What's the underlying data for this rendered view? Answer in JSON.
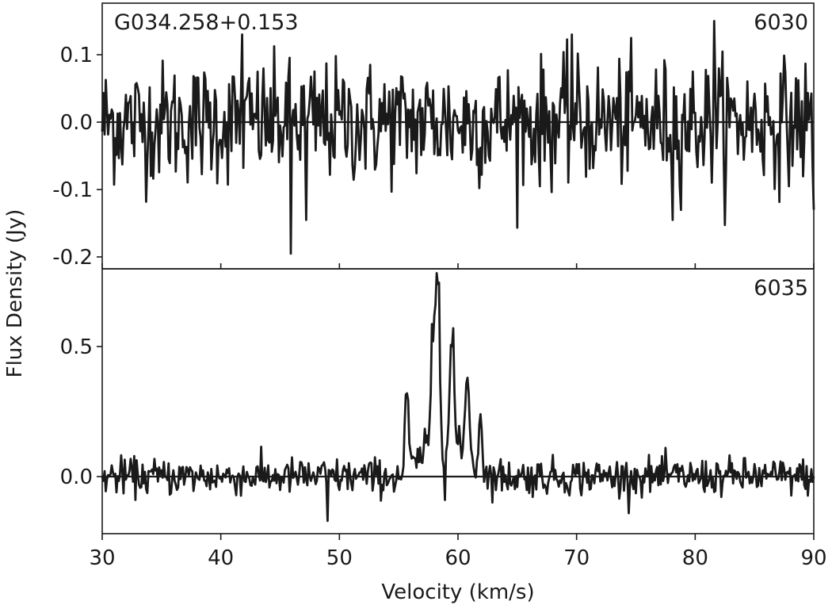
{
  "chart_data": {
    "type": "line",
    "xlabel": "Velocity (km/s)",
    "ylabel": "Flux Density (Jy)",
    "xlim": [
      30,
      90
    ],
    "x_ticks": [
      30,
      40,
      50,
      60,
      70,
      80,
      90
    ],
    "x_tick_labels": [
      "30",
      "40",
      "50",
      "60",
      "70",
      "80",
      "90"
    ],
    "source_label": "G034.258+0.153",
    "grid": false,
    "panels": [
      {
        "label": "6030",
        "ylim": [
          -0.22,
          0.18
        ],
        "y_ticks": [
          0.1,
          0.0,
          -0.1,
          -0.2
        ],
        "y_tick_labels": [
          "0.1",
          "0.0",
          "-0.1",
          "-0.2"
        ],
        "zero_line": 0.0,
        "noise_rms": 0.045,
        "features": [
          {
            "x": 41.8,
            "y": 0.13
          },
          {
            "x": 45.9,
            "y": -0.195
          },
          {
            "x": 47.2,
            "y": -0.145
          },
          {
            "x": 69.6,
            "y": 0.13
          },
          {
            "x": 78.1,
            "y": -0.145
          },
          {
            "x": 81.6,
            "y": 0.15
          },
          {
            "x": 90.0,
            "y": -0.13
          }
        ]
      },
      {
        "label": "6035",
        "ylim": [
          -0.22,
          0.75
        ],
        "y_ticks": [
          0.5,
          0.0
        ],
        "y_tick_labels": [
          "0.5",
          "0.0"
        ],
        "zero_line": 0.0,
        "noise_rms": 0.035,
        "emission_peaks": [
          {
            "x": 55.7,
            "y": 0.32
          },
          {
            "x": 57.9,
            "y": 0.52
          },
          {
            "x": 58.3,
            "y": 0.74
          },
          {
            "x": 59.5,
            "y": 0.5
          },
          {
            "x": 60.8,
            "y": 0.38
          },
          {
            "x": 61.9,
            "y": 0.24
          }
        ],
        "features": [
          {
            "x": 49.0,
            "y": -0.17
          },
          {
            "x": 58.9,
            "y": -0.09
          }
        ]
      }
    ]
  }
}
